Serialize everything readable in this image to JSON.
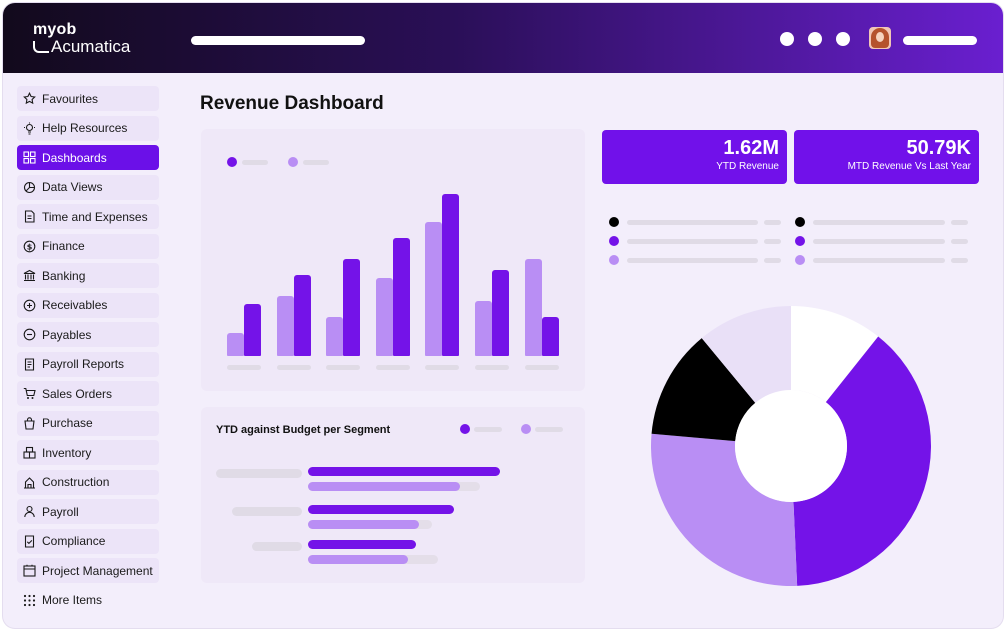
{
  "brand": {
    "line1": "myob",
    "line2": "Acumatica"
  },
  "page_title": "Revenue Dashboard",
  "sidebar": {
    "items": [
      {
        "label": "Favourites",
        "icon": "star-icon"
      },
      {
        "label": "Help Resources",
        "icon": "lightbulb-icon"
      },
      {
        "label": "Dashboards",
        "icon": "dashboard-icon",
        "active": true
      },
      {
        "label": "Data Views",
        "icon": "pie-chart-icon"
      },
      {
        "label": "Time and Expenses",
        "icon": "document-icon"
      },
      {
        "label": "Finance",
        "icon": "dollar-icon"
      },
      {
        "label": "Banking",
        "icon": "bank-icon"
      },
      {
        "label": "Receivables",
        "icon": "receivables-icon"
      },
      {
        "label": "Payables",
        "icon": "payables-icon"
      },
      {
        "label": "Payroll Reports",
        "icon": "report-icon"
      },
      {
        "label": "Sales Orders",
        "icon": "cart-icon"
      },
      {
        "label": "Purchase",
        "icon": "purchase-icon"
      },
      {
        "label": "Inventory",
        "icon": "inventory-icon"
      },
      {
        "label": "Construction",
        "icon": "construction-icon"
      },
      {
        "label": "Payroll",
        "icon": "payroll-icon"
      },
      {
        "label": "Compliance",
        "icon": "compliance-icon"
      },
      {
        "label": "Project Management",
        "icon": "project-icon"
      },
      {
        "label": "More Items",
        "icon": "grid-dots-icon"
      }
    ]
  },
  "kpis": [
    {
      "value": "1.62M",
      "label": "YTD Revenue"
    },
    {
      "value": "50.79K",
      "label": "MTD Revenue Vs Last Year"
    }
  ],
  "segment_panel": {
    "title": "YTD against Budget per Segment"
  },
  "colors": {
    "accent": "#7413e8",
    "accent_light": "#b98ef4",
    "black": "#000000",
    "lavender": "#e9e0f7",
    "white": "#ffffff"
  },
  "chart_data": [
    {
      "type": "bar",
      "categories": [
        "",
        "",
        "",
        "",
        "",
        "",
        ""
      ],
      "series": [
        {
          "values": [
            14,
            37,
            24,
            48,
            83,
            34,
            60
          ]
        },
        {
          "values": [
            32,
            50,
            60,
            73,
            100,
            53,
            24
          ]
        }
      ],
      "ylim": [
        0,
        100
      ],
      "legend": "top-left"
    },
    {
      "type": "bar",
      "orientation": "horizontal",
      "categories": [
        "",
        "",
        ""
      ],
      "series": [
        {
          "values": [
            100,
            76,
            56
          ]
        },
        {
          "values": [
            79,
            58,
            52
          ]
        }
      ],
      "xlim": [
        0,
        100
      ],
      "legend": "top-right"
    },
    {
      "type": "pie",
      "donut": true,
      "slices": [
        {
          "value": 10.7,
          "color": "#ffffff"
        },
        {
          "value": 38.6,
          "color": "#7413e8"
        },
        {
          "value": 27.1,
          "color": "#b98ef4"
        },
        {
          "value": 12.6,
          "color": "#000000"
        },
        {
          "value": 11.0,
          "color": "#e9e0f7"
        }
      ],
      "legend": "top"
    }
  ]
}
